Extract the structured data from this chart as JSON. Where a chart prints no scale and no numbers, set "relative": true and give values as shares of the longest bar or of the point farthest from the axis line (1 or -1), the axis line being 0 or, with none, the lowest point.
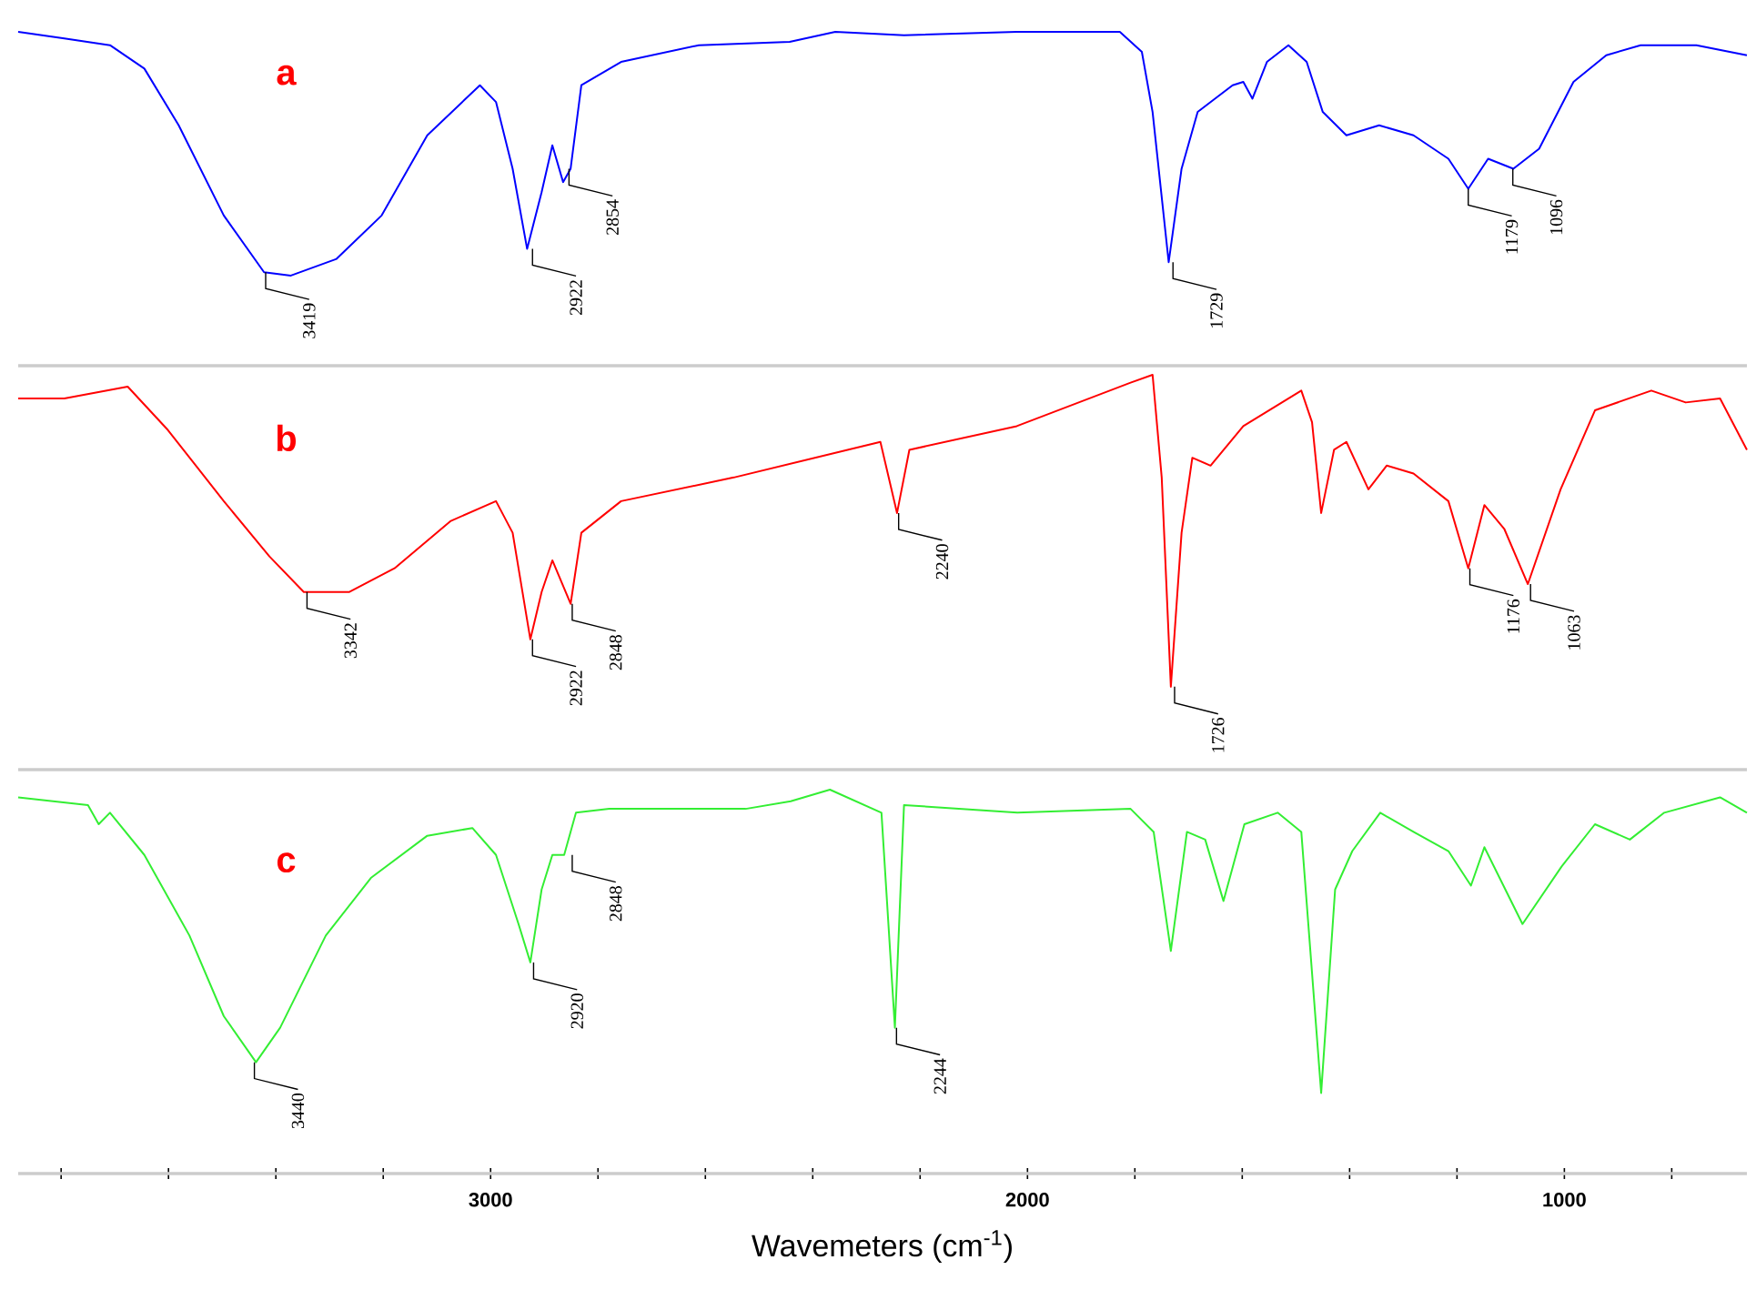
{
  "chart_data": [
    {
      "type": "line",
      "title": "a",
      "relative": true,
      "tick_labels": false,
      "xlim": [
        3880,
        660
      ],
      "x": [
        3880,
        3794,
        3709,
        3645,
        3581,
        3497,
        3422,
        3372,
        3287,
        3203,
        3118,
        3020,
        2990,
        2959,
        2932,
        2905,
        2885,
        2865,
        2851,
        2831,
        2757,
        2612,
        2443,
        2358,
        2230,
        2020,
        1828,
        1787,
        1767,
        1737,
        1713,
        1683,
        1618,
        1598,
        1581,
        1554,
        1514,
        1480,
        1450,
        1406,
        1345,
        1281,
        1216,
        1179,
        1142,
        1095,
        1047,
        983,
        922,
        858,
        754,
        660
      ],
      "series": [
        {
          "color": "#0000ff",
          "values": [
            1.0,
            0.98,
            0.96,
            0.89,
            0.72,
            0.45,
            0.28,
            0.27,
            0.32,
            0.45,
            0.69,
            0.84,
            0.79,
            0.59,
            0.35,
            0.52,
            0.66,
            0.55,
            0.59,
            0.84,
            0.91,
            0.96,
            0.97,
            1.0,
            0.99,
            1.0,
            1.0,
            0.94,
            0.76,
            0.31,
            0.59,
            0.76,
            0.84,
            0.85,
            0.8,
            0.91,
            0.96,
            0.91,
            0.76,
            0.69,
            0.72,
            0.69,
            0.62,
            0.53,
            0.62,
            0.59,
            0.65,
            0.85,
            0.93,
            0.96,
            0.96,
            0.93
          ]
        }
      ],
      "annotations": [
        {
          "text": "3419",
          "x": 3419,
          "y": 0.28
        },
        {
          "text": "2922",
          "x": 2922,
          "y": 0.35
        },
        {
          "text": "2854",
          "x": 2854,
          "y": 0.59
        },
        {
          "text": "1729",
          "x": 1729,
          "y": 0.31
        },
        {
          "text": "1179",
          "x": 1179,
          "y": 0.53
        },
        {
          "text": "1096",
          "x": 1096,
          "y": 0.59
        }
      ]
    },
    {
      "type": "line",
      "title": "b",
      "relative": true,
      "tick_labels": false,
      "xlim": [
        3880,
        660
      ],
      "x": [
        3880,
        3794,
        3676,
        3601,
        3497,
        3412,
        3348,
        3263,
        3179,
        3074,
        2990,
        2959,
        2926,
        2905,
        2885,
        2851,
        2831,
        2757,
        2547,
        2274,
        2243,
        2220,
        2020,
        1808,
        1767,
        1750,
        1733,
        1713,
        1693,
        1659,
        1598,
        1490,
        1470,
        1453,
        1429,
        1406,
        1365,
        1331,
        1281,
        1216,
        1179,
        1149,
        1112,
        1068,
        1007,
        943,
        838,
        774,
        710,
        660
      ],
      "series": [
        {
          "color": "#ff0000",
          "values": [
            0.94,
            0.94,
            0.97,
            0.86,
            0.68,
            0.54,
            0.45,
            0.45,
            0.51,
            0.63,
            0.68,
            0.6,
            0.33,
            0.45,
            0.53,
            0.42,
            0.6,
            0.68,
            0.74,
            0.83,
            0.65,
            0.81,
            0.87,
            0.98,
            1.0,
            0.74,
            0.21,
            0.6,
            0.79,
            0.77,
            0.87,
            0.96,
            0.88,
            0.65,
            0.81,
            0.83,
            0.71,
            0.77,
            0.75,
            0.68,
            0.51,
            0.67,
            0.61,
            0.47,
            0.71,
            0.91,
            0.96,
            0.93,
            0.94,
            0.81
          ]
        }
      ],
      "annotations": [
        {
          "text": "3342",
          "x": 3342,
          "y": 0.45
        },
        {
          "text": "2922",
          "x": 2922,
          "y": 0.33
        },
        {
          "text": "2848",
          "x": 2848,
          "y": 0.42
        },
        {
          "text": "2240",
          "x": 2240,
          "y": 0.65
        },
        {
          "text": "1726",
          "x": 1726,
          "y": 0.21
        },
        {
          "text": "1176",
          "x": 1176,
          "y": 0.51
        },
        {
          "text": "1063",
          "x": 1063,
          "y": 0.47
        }
      ]
    },
    {
      "type": "line",
      "title": "c",
      "relative": true,
      "tick_labels": "x",
      "xlabel": "Wavemeters (cm$^{-1}$)",
      "xlim": [
        3880,
        660
      ],
      "xticks": [
        {
          "value": 3800,
          "label": null
        },
        {
          "value": 3600,
          "label": null
        },
        {
          "value": 3400,
          "label": null
        },
        {
          "value": 3200,
          "label": null
        },
        3000,
        {
          "value": 2800,
          "label": null
        },
        {
          "value": 2600,
          "label": null
        },
        {
          "value": 2400,
          "label": null
        },
        {
          "value": 2200,
          "label": null
        },
        2000,
        {
          "value": 1800,
          "label": null
        },
        {
          "value": 1600,
          "label": null
        },
        {
          "value": 1400,
          "label": null
        },
        {
          "value": 1200,
          "label": null
        },
        1000,
        {
          "value": 800,
          "label": null
        }
      ],
      "x": [
        3880,
        3750,
        3730,
        3709,
        3645,
        3561,
        3497,
        3437,
        3392,
        3307,
        3223,
        3118,
        3034,
        2990,
        2948,
        2926,
        2905,
        2885,
        2863,
        2841,
        2779,
        2525,
        2441,
        2368,
        2272,
        2247,
        2230,
        2019,
        1808,
        1765,
        1733,
        1703,
        1669,
        1635,
        1596,
        1534,
        1490,
        1453,
        1427,
        1395,
        1343,
        1281,
        1216,
        1174,
        1149,
        1078,
        1005,
        943,
        878,
        814,
        710,
        660
      ],
      "series": [
        {
          "color": "#33ee33",
          "values": [
            0.98,
            0.96,
            0.91,
            0.94,
            0.83,
            0.62,
            0.41,
            0.29,
            0.38,
            0.62,
            0.77,
            0.88,
            0.9,
            0.83,
            0.65,
            0.55,
            0.74,
            0.83,
            0.83,
            0.94,
            0.95,
            0.95,
            0.97,
            1.0,
            0.94,
            0.38,
            0.96,
            0.94,
            0.95,
            0.89,
            0.58,
            0.89,
            0.87,
            0.71,
            0.91,
            0.94,
            0.89,
            0.21,
            0.74,
            0.84,
            0.94,
            0.89,
            0.84,
            0.75,
            0.85,
            0.65,
            0.8,
            0.91,
            0.87,
            0.94,
            0.98,
            0.94
          ]
        }
      ],
      "annotations": [
        {
          "text": "3440",
          "x": 3440,
          "y": 0.29
        },
        {
          "text": "2920",
          "x": 2920,
          "y": 0.55
        },
        {
          "text": "2848",
          "x": 2848,
          "y": 0.83
        },
        {
          "text": "2244",
          "x": 2244,
          "y": 0.38
        }
      ]
    }
  ]
}
